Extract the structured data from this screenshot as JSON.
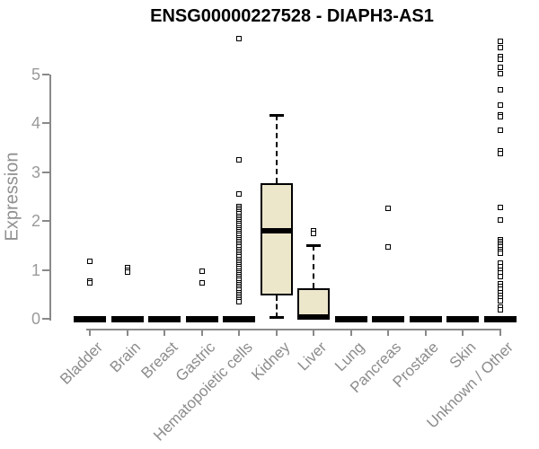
{
  "chart_data": {
    "type": "boxplot",
    "title": "ENSG00000227528 - DIAPH3-AS1",
    "ylabel": "Expression",
    "xlabel": "",
    "ylim": [
      0,
      5.8
    ],
    "yticks": [
      0,
      1,
      2,
      3,
      4,
      5
    ],
    "grid": "off",
    "legend": "none",
    "categories": [
      "Bladder",
      "Brain",
      "Breast",
      "Gastric",
      "Hematopoietic cells",
      "Kidney",
      "Liver",
      "Lung",
      "Pancreas",
      "Prostate",
      "Skin",
      "Unknown / Other"
    ],
    "colors": {
      "box_fill": "#ece7cb",
      "box_border": "#000000",
      "axis": "#898989",
      "tick_label": "#9a9a9a",
      "title": "#000000"
    },
    "boxes": [
      {
        "category": "Bladder",
        "whisker_low": 0,
        "q1": 0,
        "median": 0,
        "q3": 0,
        "whisker_high": 0,
        "outliers": [
          1.18,
          0.77,
          0.73
        ]
      },
      {
        "category": "Brain",
        "whisker_low": 0,
        "q1": 0,
        "median": 0,
        "q3": 0,
        "whisker_high": 0,
        "outliers": [
          1.05,
          1.0,
          0.96
        ]
      },
      {
        "category": "Breast",
        "whisker_low": 0,
        "q1": 0,
        "median": 0,
        "q3": 0,
        "whisker_high": 0,
        "outliers": []
      },
      {
        "category": "Gastric",
        "whisker_low": 0,
        "q1": 0,
        "median": 0,
        "q3": 0,
        "whisker_high": 0,
        "outliers": [
          0.97,
          0.73
        ]
      },
      {
        "category": "Hematopoietic cells",
        "whisker_low": 0,
        "q1": 0,
        "median": 0,
        "q3": 0,
        "whisker_high": 0,
        "outliers": [
          5.72,
          3.25,
          2.55,
          2.3,
          2.26,
          2.22,
          2.18,
          2.14,
          2.1,
          2.06,
          2.02,
          1.98,
          1.94,
          1.9,
          1.86,
          1.82,
          1.78,
          1.74,
          1.7,
          1.66,
          1.62,
          1.58,
          1.54,
          1.5,
          1.46,
          1.42,
          1.38,
          1.34,
          1.3,
          1.26,
          1.22,
          1.18,
          1.14,
          1.1,
          1.06,
          1.02,
          0.98,
          0.94,
          0.9,
          0.86,
          0.82,
          0.78,
          0.74,
          0.7,
          0.66,
          0.62,
          0.58,
          0.54,
          0.5,
          0.46,
          0.42,
          0.39,
          0.35
        ]
      },
      {
        "category": "Kidney",
        "whisker_low": 0.02,
        "q1": 0.48,
        "median": 1.8,
        "q3": 2.77,
        "whisker_high": 4.16,
        "outliers": []
      },
      {
        "category": "Liver",
        "whisker_low": 0,
        "q1": 0,
        "median": 0.03,
        "q3": 0.63,
        "whisker_high": 1.5,
        "outliers": [
          1.8,
          1.74
        ]
      },
      {
        "category": "Lung",
        "whisker_low": 0,
        "q1": 0,
        "median": 0,
        "q3": 0,
        "whisker_high": 0,
        "outliers": []
      },
      {
        "category": "Pancreas",
        "whisker_low": 0,
        "q1": 0,
        "median": 0,
        "q3": 0,
        "whisker_high": 0,
        "outliers": [
          2.26,
          1.47
        ]
      },
      {
        "category": "Prostate",
        "whisker_low": 0,
        "q1": 0,
        "median": 0,
        "q3": 0,
        "whisker_high": 0,
        "outliers": []
      },
      {
        "category": "Skin",
        "whisker_low": 0,
        "q1": 0,
        "median": 0,
        "q3": 0,
        "whisker_high": 0,
        "outliers": []
      },
      {
        "category": "Unknown / Other",
        "whisker_low": 0,
        "q1": 0,
        "median": 0,
        "q3": 0,
        "whisker_high": 0,
        "outliers": [
          5.67,
          5.55,
          5.35,
          5.31,
          5.14,
          5.01,
          4.68,
          4.36,
          4.17,
          4.12,
          3.85,
          3.43,
          3.37,
          2.28,
          2.02,
          1.62,
          1.58,
          1.54,
          1.5,
          1.46,
          1.42,
          1.38,
          1.34,
          1.13,
          1.07,
          1.0,
          0.93,
          0.86,
          0.72,
          0.66,
          0.6,
          0.54,
          0.48,
          0.42,
          0.36,
          0.24,
          0.18
        ]
      }
    ]
  }
}
